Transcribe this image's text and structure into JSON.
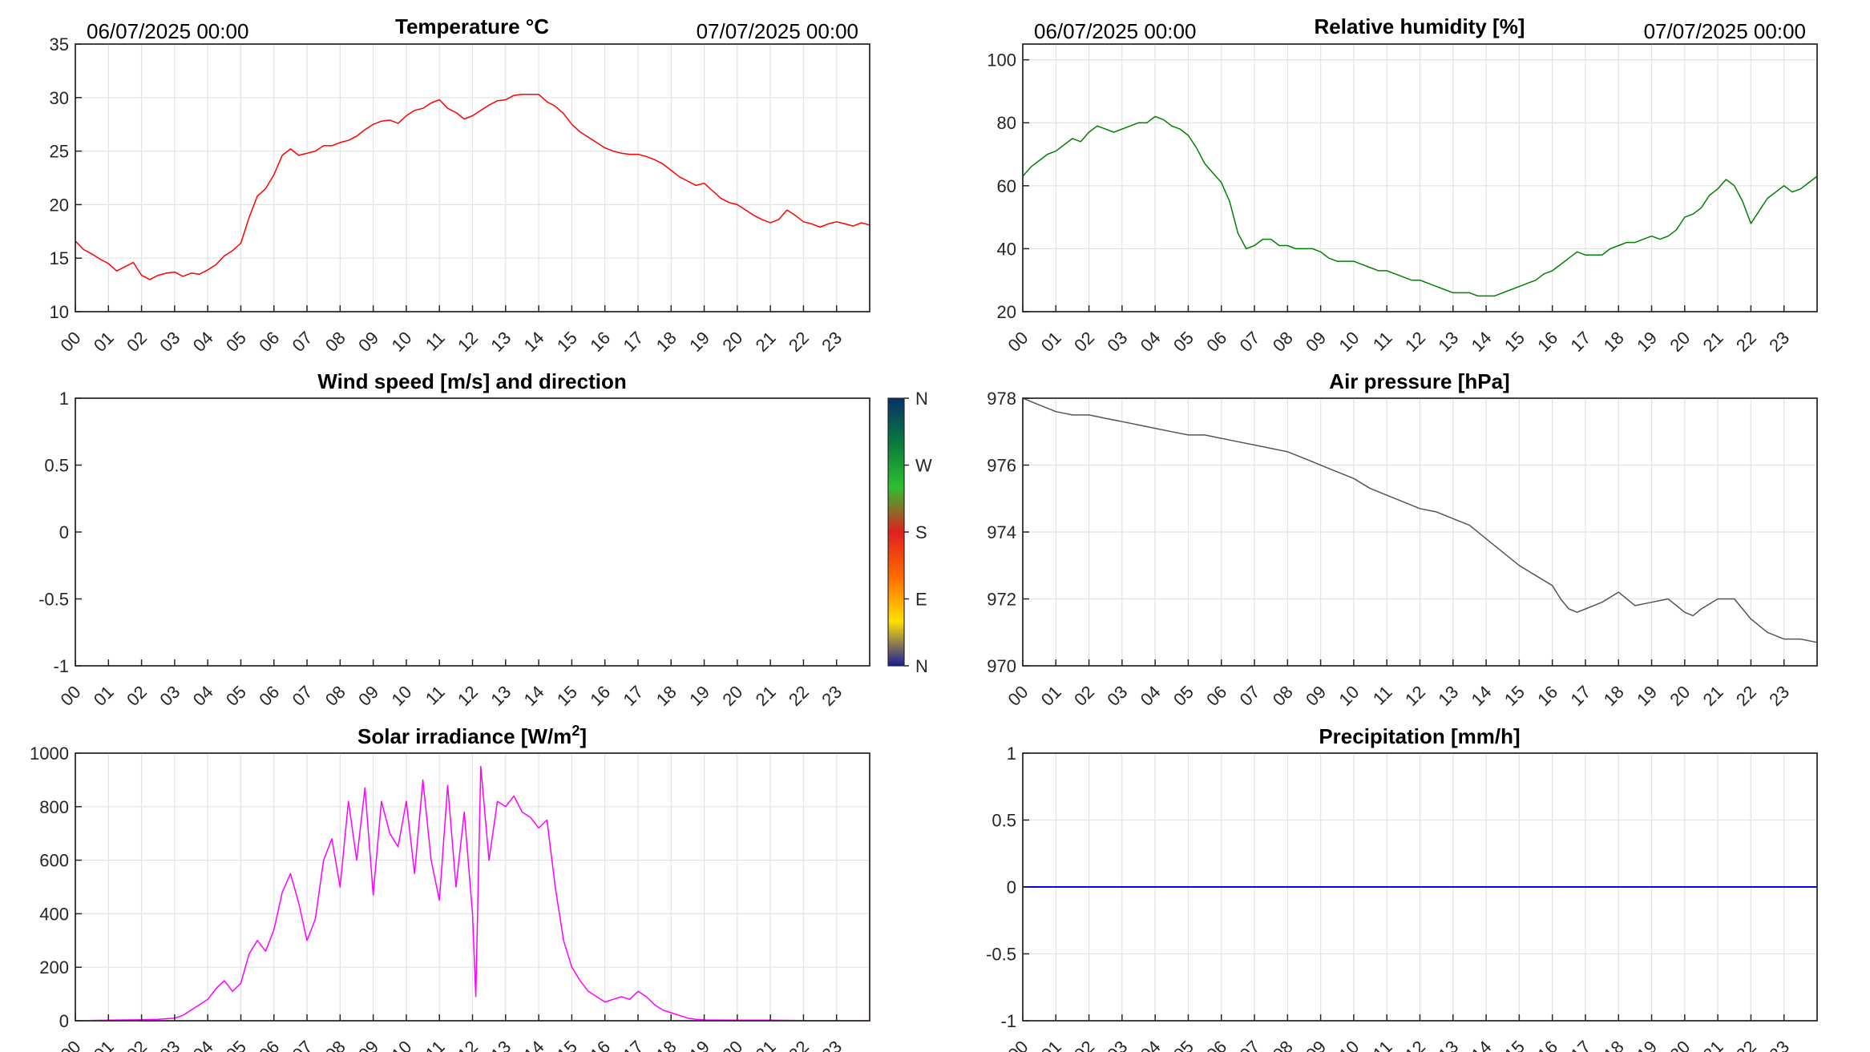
{
  "colors": {
    "temperature": "#ff0000",
    "humidity": "#008000",
    "pressure": "#555555",
    "solar": "#ff00ff",
    "precipitation": "#0000ff",
    "grid": "#e3e3e3",
    "axes": "#262626"
  },
  "hour_ticks": [
    "00",
    "01",
    "02",
    "03",
    "04",
    "05",
    "06",
    "07",
    "08",
    "09",
    "10",
    "11",
    "12",
    "13",
    "14",
    "15",
    "16",
    "17",
    "18",
    "19",
    "20",
    "21",
    "22",
    "23"
  ],
  "wind_colorbar": {
    "labels": [
      "N",
      "W",
      "S",
      "E",
      "N"
    ],
    "colors": [
      "#08306b",
      "#0a7a3c",
      "#2fbf2f",
      "#e02020",
      "#ff6a00",
      "#ffe000",
      "#1a1a9c"
    ]
  },
  "chart_data": [
    {
      "id": "temperature",
      "type": "line",
      "title": "Temperature °C",
      "date_start": "06/07/2025 00:00",
      "date_end": "07/07/2025 00:00",
      "xlabel": "",
      "ylabel": "",
      "xlim": [
        0,
        24
      ],
      "ylim": [
        10,
        35
      ],
      "yticks": [
        "10",
        "15",
        "20",
        "25",
        "30",
        "35"
      ],
      "grid": true,
      "series": [
        {
          "color": "#ff0000",
          "x": [
            0,
            0.25,
            0.5,
            0.75,
            1,
            1.25,
            1.5,
            1.75,
            2,
            2.25,
            2.5,
            2.75,
            3,
            3.25,
            3.5,
            3.75,
            4,
            4.25,
            4.5,
            4.75,
            5,
            5.25,
            5.5,
            5.75,
            6,
            6.25,
            6.5,
            6.75,
            7,
            7.25,
            7.5,
            7.75,
            8,
            8.25,
            8.5,
            8.75,
            9,
            9.25,
            9.5,
            9.75,
            10,
            10.25,
            10.5,
            10.75,
            11,
            11.25,
            11.5,
            11.75,
            12,
            12.25,
            12.5,
            12.75,
            13,
            13.25,
            13.5,
            13.75,
            14,
            14.25,
            14.5,
            14.75,
            15,
            15.25,
            15.5,
            15.75,
            16,
            16.25,
            16.5,
            16.75,
            17,
            17.25,
            17.5,
            17.75,
            18,
            18.25,
            18.5,
            18.75,
            19,
            19.25,
            19.5,
            19.75,
            20,
            20.25,
            20.5,
            20.75,
            21,
            21.25,
            21.5,
            21.75,
            22,
            22.25,
            22.5,
            22.75,
            23,
            23.25,
            23.5,
            23.75,
            24
          ],
          "y": [
            16.6,
            15.8,
            15.4,
            14.9,
            14.5,
            13.8,
            14.2,
            14.6,
            13.4,
            13.0,
            13.4,
            13.6,
            13.7,
            13.3,
            13.6,
            13.5,
            13.9,
            14.4,
            15.2,
            15.7,
            16.4,
            18.8,
            20.8,
            21.5,
            22.8,
            24.6,
            25.2,
            24.6,
            24.8,
            25.0,
            25.5,
            25.5,
            25.8,
            26.0,
            26.4,
            27.0,
            27.5,
            27.8,
            27.9,
            27.6,
            28.3,
            28.8,
            29.0,
            29.5,
            29.8,
            29.0,
            28.6,
            28.0,
            28.3,
            28.8,
            29.3,
            29.7,
            29.8,
            30.2,
            30.3,
            30.3,
            30.3,
            29.6,
            29.2,
            28.5,
            27.5,
            26.8,
            26.3,
            25.8,
            25.3,
            25.0,
            24.8,
            24.7,
            24.7,
            24.5,
            24.2,
            23.8,
            23.2,
            22.6,
            22.2,
            21.8,
            22.0,
            21.3,
            20.6,
            20.2,
            20.0,
            19.5,
            19.0,
            18.6,
            18.3,
            18.6,
            19.5,
            19.0,
            18.4,
            18.2,
            17.9,
            18.2,
            18.4,
            18.2,
            18.0,
            18.3,
            18.1
          ]
        }
      ]
    },
    {
      "id": "humidity",
      "type": "line",
      "title": "Relative humidity [%]",
      "date_start": "06/07/2025 00:00",
      "date_end": "07/07/2025 00:00",
      "xlabel": "",
      "ylabel": "",
      "xlim": [
        0,
        24
      ],
      "ylim": [
        20,
        105
      ],
      "yticks": [
        "20",
        "40",
        "60",
        "80",
        "100"
      ],
      "grid": true,
      "series": [
        {
          "color": "#008000",
          "x": [
            0,
            0.25,
            0.5,
            0.75,
            1,
            1.25,
            1.5,
            1.75,
            2,
            2.25,
            2.5,
            2.75,
            3,
            3.25,
            3.5,
            3.75,
            4,
            4.25,
            4.5,
            4.75,
            5,
            5.25,
            5.5,
            5.75,
            6,
            6.25,
            6.5,
            6.75,
            7,
            7.25,
            7.5,
            7.75,
            8,
            8.25,
            8.5,
            8.75,
            9,
            9.25,
            9.5,
            9.75,
            10,
            10.25,
            10.5,
            10.75,
            11,
            11.25,
            11.5,
            11.75,
            12,
            12.25,
            12.5,
            12.75,
            13,
            13.25,
            13.5,
            13.75,
            14,
            14.25,
            14.5,
            14.75,
            15,
            15.25,
            15.5,
            15.75,
            16,
            16.25,
            16.5,
            16.75,
            17,
            17.25,
            17.5,
            17.75,
            18,
            18.25,
            18.5,
            18.75,
            19,
            19.25,
            19.5,
            19.75,
            20,
            20.25,
            20.5,
            20.75,
            21,
            21.25,
            21.5,
            21.75,
            22,
            22.25,
            22.5,
            22.75,
            23,
            23.25,
            23.5,
            23.75,
            24
          ],
          "y": [
            63,
            66,
            68,
            70,
            71,
            73,
            75,
            74,
            77,
            79,
            78,
            77,
            78,
            79,
            80,
            80,
            82,
            81,
            79,
            78,
            76,
            72,
            67,
            64,
            61,
            55,
            45,
            40,
            41,
            43,
            43,
            41,
            41,
            40,
            40,
            40,
            39,
            37,
            36,
            36,
            36,
            35,
            34,
            33,
            33,
            32,
            31,
            30,
            30,
            29,
            28,
            27,
            26,
            26,
            26,
            25,
            25,
            25,
            26,
            27,
            28,
            29,
            30,
            32,
            33,
            35,
            37,
            39,
            38,
            38,
            38,
            40,
            41,
            42,
            42,
            43,
            44,
            43,
            44,
            46,
            50,
            51,
            53,
            57,
            59,
            62,
            60,
            55,
            48,
            52,
            56,
            58,
            60,
            58,
            59,
            61,
            63
          ]
        }
      ]
    },
    {
      "id": "wind",
      "type": "scatter",
      "title": "Wind speed [m/s] and direction",
      "xlabel": "",
      "ylabel": "",
      "xlim": [
        0,
        24
      ],
      "ylim": [
        -1,
        1
      ],
      "yticks": [
        "-1",
        "-0.5",
        "0",
        "0.5",
        "1"
      ],
      "grid": false,
      "series": []
    },
    {
      "id": "pressure",
      "type": "line",
      "title": "Air pressure [hPa]",
      "xlabel": "",
      "ylabel": "",
      "xlim": [
        0,
        24
      ],
      "ylim": [
        970,
        978
      ],
      "yticks": [
        "970",
        "972",
        "974",
        "976",
        "978"
      ],
      "grid": true,
      "series": [
        {
          "color": "#555555",
          "x": [
            0,
            0.5,
            1,
            1.5,
            2,
            2.5,
            3,
            3.5,
            4,
            4.5,
            5,
            5.5,
            6,
            6.5,
            7,
            7.5,
            8,
            8.5,
            9,
            9.5,
            10,
            10.5,
            11,
            11.5,
            12,
            12.5,
            13,
            13.5,
            14,
            14.5,
            15,
            15.5,
            16,
            16.25,
            16.5,
            16.75,
            17,
            17.5,
            18,
            18.5,
            19,
            19.5,
            20,
            20.25,
            20.5,
            21,
            21.5,
            22,
            22.5,
            23,
            23.5,
            24
          ],
          "y": [
            978.0,
            977.8,
            977.6,
            977.5,
            977.5,
            977.4,
            977.3,
            977.2,
            977.1,
            977.0,
            976.9,
            976.9,
            976.8,
            976.7,
            976.6,
            976.5,
            976.4,
            976.2,
            976.0,
            975.8,
            975.6,
            975.3,
            975.1,
            974.9,
            974.7,
            974.6,
            974.4,
            974.2,
            973.8,
            973.4,
            973.0,
            972.7,
            972.4,
            972.0,
            971.7,
            971.6,
            971.7,
            971.9,
            972.2,
            971.8,
            971.9,
            972.0,
            971.6,
            971.5,
            971.7,
            972.0,
            972.0,
            971.4,
            971.0,
            970.8,
            970.8,
            970.7
          ]
        }
      ]
    },
    {
      "id": "solar",
      "type": "line",
      "title": "Solar irradiance [W/m",
      "title_sup": "2",
      "title_end": "]",
      "xlabel": "",
      "ylabel": "",
      "xlim": [
        0,
        24
      ],
      "ylim": [
        0,
        1000
      ],
      "yticks": [
        "0",
        "200",
        "400",
        "600",
        "800",
        "1000"
      ],
      "grid": true,
      "series": [
        {
          "color": "#ff00ff",
          "x": [
            0,
            1,
            2,
            2.5,
            3,
            3.25,
            3.5,
            3.75,
            4,
            4.25,
            4.5,
            4.75,
            5,
            5.25,
            5.5,
            5.75,
            6,
            6.25,
            6.5,
            6.75,
            7,
            7.25,
            7.5,
            7.75,
            8,
            8.25,
            8.5,
            8.75,
            9,
            9.25,
            9.5,
            9.75,
            10,
            10.25,
            10.5,
            10.75,
            11,
            11.25,
            11.5,
            11.75,
            12,
            12.1,
            12.25,
            12.5,
            12.75,
            13,
            13.25,
            13.5,
            13.75,
            14,
            14.25,
            14.5,
            14.75,
            15,
            15.25,
            15.5,
            15.75,
            16,
            16.25,
            16.5,
            16.75,
            17,
            17.25,
            17.5,
            17.75,
            18,
            18.25,
            18.5,
            18.75,
            19,
            20,
            21,
            22,
            23,
            24
          ],
          "y": [
            0,
            2,
            4,
            5,
            10,
            20,
            40,
            60,
            80,
            120,
            150,
            110,
            140,
            250,
            300,
            260,
            340,
            480,
            550,
            440,
            300,
            380,
            600,
            680,
            500,
            820,
            600,
            870,
            470,
            820,
            700,
            650,
            820,
            550,
            900,
            600,
            450,
            880,
            500,
            780,
            400,
            90,
            950,
            600,
            820,
            800,
            840,
            780,
            760,
            720,
            750,
            500,
            300,
            200,
            150,
            110,
            90,
            70,
            80,
            90,
            80,
            110,
            90,
            60,
            40,
            30,
            20,
            10,
            5,
            3,
            2,
            2,
            1,
            1,
            0
          ]
        }
      ]
    },
    {
      "id": "precipitation",
      "type": "line",
      "title": "Precipitation [mm/h]",
      "xlabel": "",
      "ylabel": "",
      "xlim": [
        0,
        24
      ],
      "ylim": [
        -1,
        1
      ],
      "yticks": [
        "-1",
        "-0.5",
        "0",
        "0.5",
        "1"
      ],
      "grid": true,
      "series": [
        {
          "color": "#0000ff",
          "x": [
            0,
            24
          ],
          "y": [
            0,
            0
          ]
        }
      ]
    }
  ]
}
